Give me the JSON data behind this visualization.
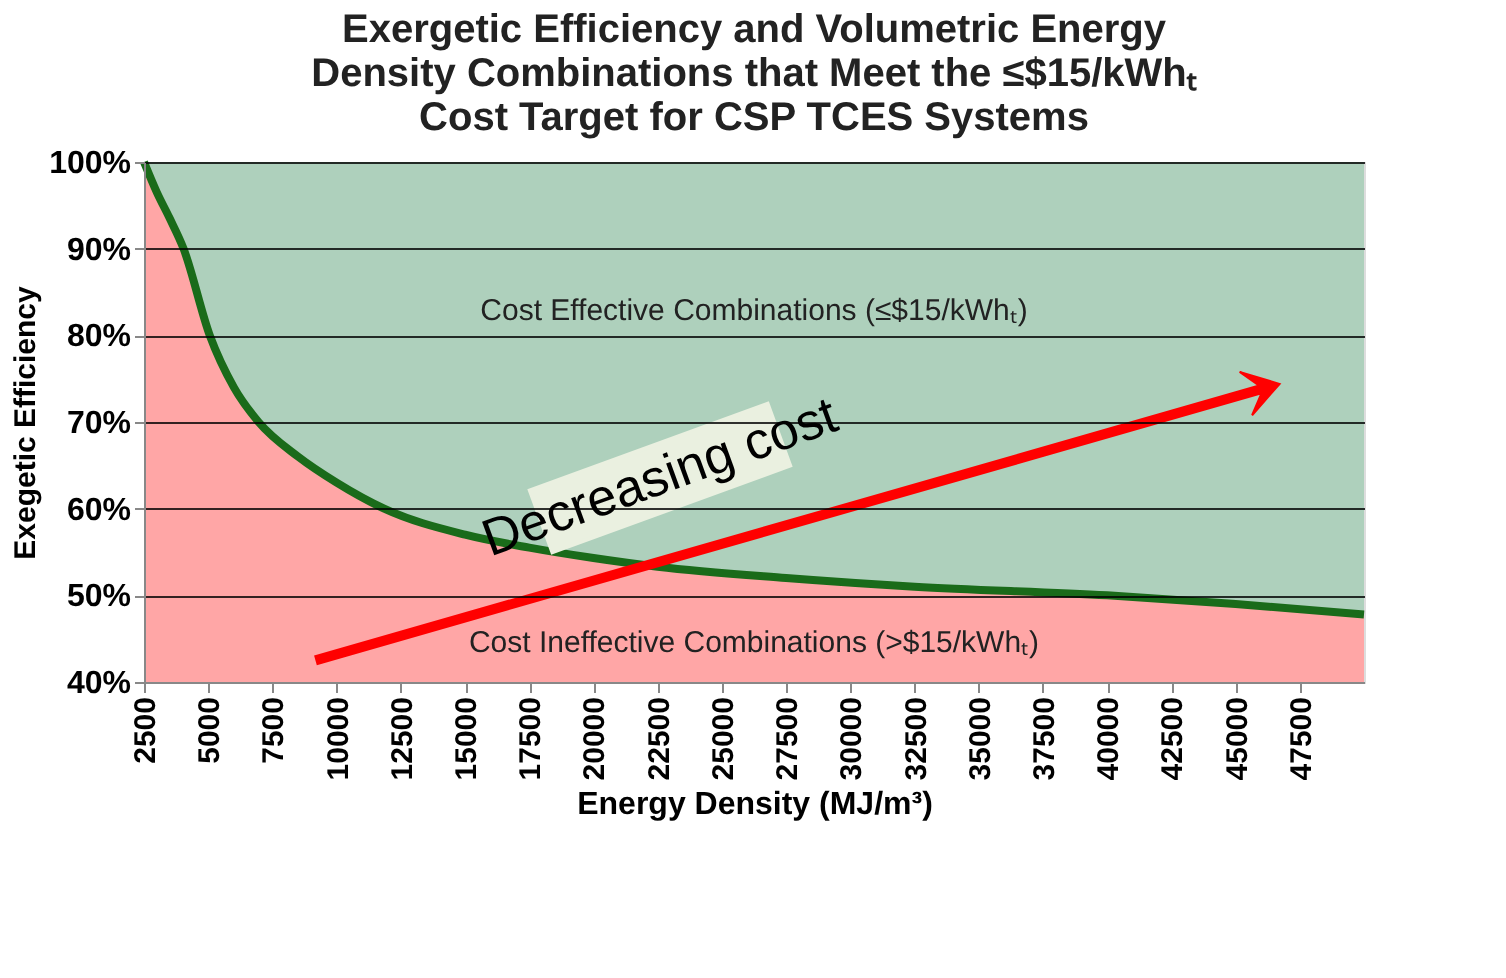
{
  "chart_data": {
    "type": "area",
    "title": [
      "Exergetic Efficiency and Volumetric Energy",
      "Density Combinations that Meet the ≤$15/kWhₜ",
      "Cost Target for CSP TCES Systems"
    ],
    "xlabel": "Energy Density (MJ/m³)",
    "ylabel": "Exegetic Efficiency",
    "x": [
      2500,
      3000,
      3500,
      4040,
      5060,
      6000,
      6960,
      8500,
      10000,
      11850,
      15000,
      17500,
      20000,
      22500,
      27500,
      32500,
      40000,
      45000,
      50000
    ],
    "series": [
      {
        "color": "#ffa6a6",
        "values": [
          100,
          96.5,
          93.5,
          90,
          80,
          74,
          70,
          66,
          63,
          60,
          57,
          55.5,
          54.3,
          53.3,
          52,
          51,
          50,
          49,
          47.8
        ]
      },
      {
        "type": "line",
        "color": "#1a6b1a",
        "values": [
          100,
          96.5,
          93.5,
          90,
          80,
          74,
          70,
          66,
          63,
          60,
          57,
          55.5,
          54.3,
          53.3,
          52,
          51,
          50,
          49,
          47.8
        ]
      }
    ],
    "bands": [
      {
        "axis": "y",
        "from": 40,
        "to": 100,
        "color": "#aed0bc"
      }
    ],
    "annotations": [
      "Cost Effective Combinations (≤$15/kWhₜ)",
      "Cost Ineffective Combinations (>$15/kWhₜ)",
      "Decreasing cost"
    ],
    "xlim": [
      2500,
      50000
    ],
    "xticks": [
      2500,
      5000,
      7500,
      10000,
      12500,
      15000,
      17500,
      20000,
      22500,
      25000,
      27500,
      30000,
      32500,
      35000,
      37500,
      40000,
      42500,
      45000,
      47500
    ],
    "ylim": [
      40,
      100
    ],
    "yticks": [
      {
        "value": 40,
        "label": "40%"
      },
      {
        "value": 50,
        "label": "50%"
      },
      {
        "value": 60,
        "label": "60%"
      },
      {
        "value": 70,
        "label": "70%"
      },
      {
        "value": 80,
        "label": "80%"
      },
      {
        "value": 90,
        "label": "90%"
      },
      {
        "value": 100,
        "label": "100%"
      }
    ],
    "grid": "y"
  }
}
